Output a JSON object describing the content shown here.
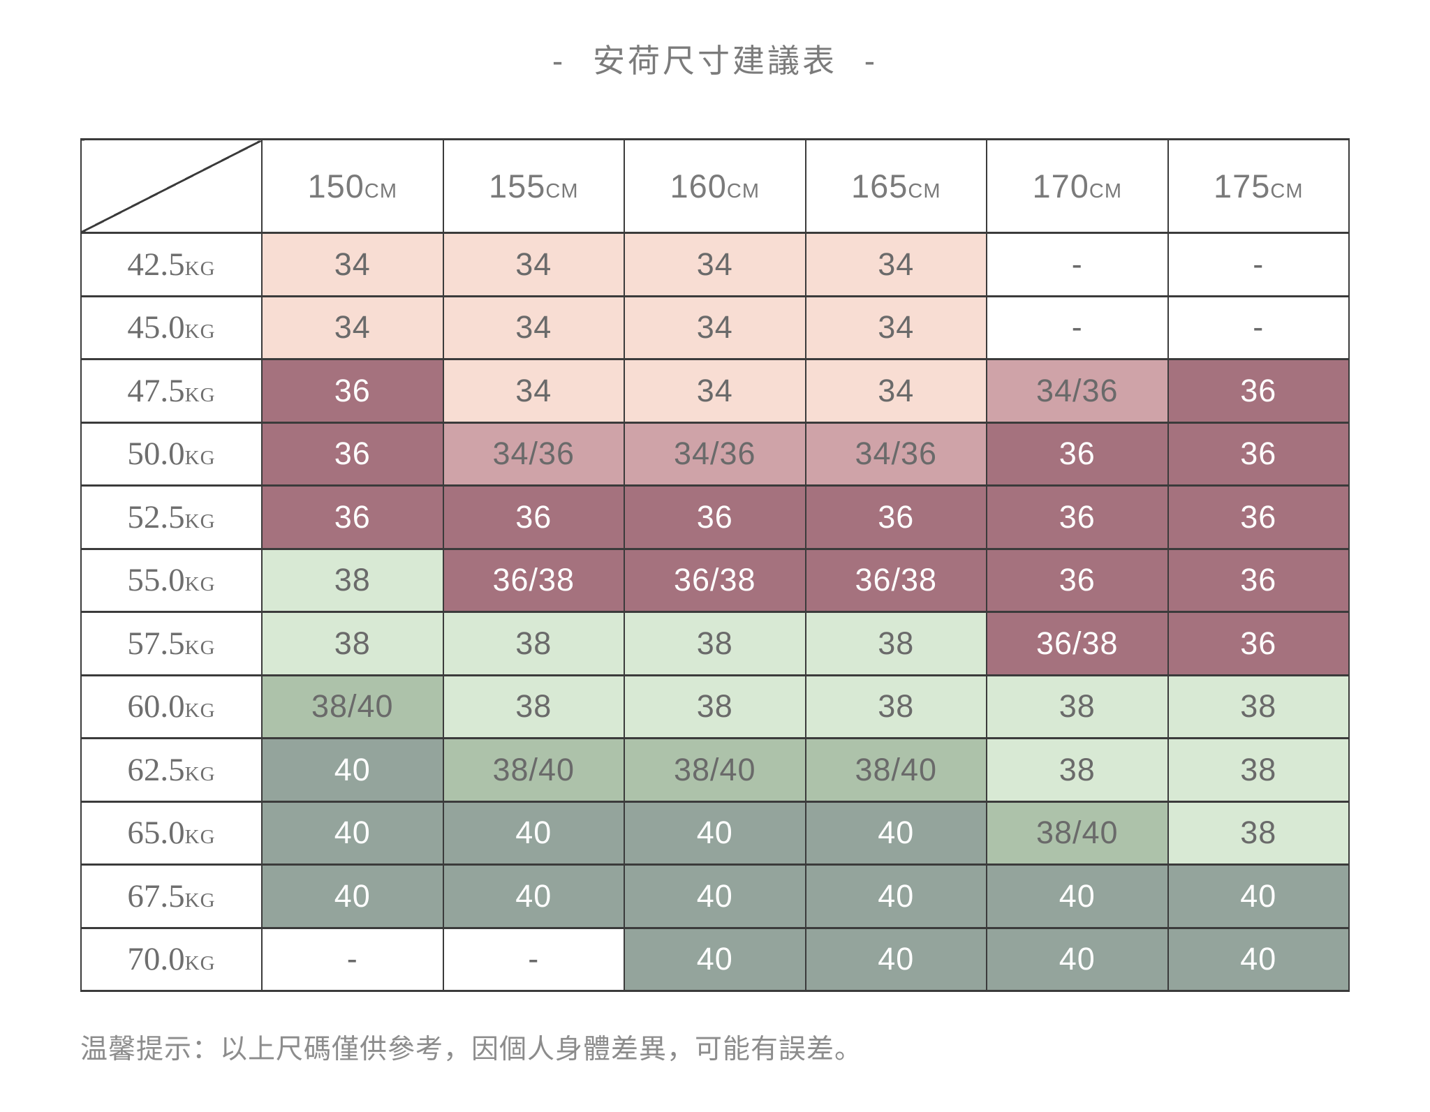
{
  "chart_data": {
    "type": "table",
    "title": "- 安荷尺寸建議表 -",
    "note": "温馨提示：以上尺碼僅供參考，因個人身體差異，可能有誤差。",
    "column_unit": "CM",
    "row_unit": "KG",
    "columns": [
      "150",
      "155",
      "160",
      "165",
      "170",
      "175"
    ],
    "rows": [
      "42.5",
      "45.0",
      "47.5",
      "50.0",
      "52.5",
      "55.0",
      "57.5",
      "60.0",
      "62.5",
      "65.0",
      "67.5",
      "70.0"
    ],
    "cells": [
      [
        {
          "v": "34",
          "bg": "lightPink",
          "fg": "dark"
        },
        {
          "v": "34",
          "bg": "lightPink",
          "fg": "dark"
        },
        {
          "v": "34",
          "bg": "lightPink",
          "fg": "dark"
        },
        {
          "v": "34",
          "bg": "lightPink",
          "fg": "dark"
        },
        {
          "v": "-",
          "bg": "white",
          "fg": "dark"
        },
        {
          "v": "-",
          "bg": "white",
          "fg": "dark"
        }
      ],
      [
        {
          "v": "34",
          "bg": "lightPink",
          "fg": "dark"
        },
        {
          "v": "34",
          "bg": "lightPink",
          "fg": "dark"
        },
        {
          "v": "34",
          "bg": "lightPink",
          "fg": "dark"
        },
        {
          "v": "34",
          "bg": "lightPink",
          "fg": "dark"
        },
        {
          "v": "-",
          "bg": "white",
          "fg": "dark"
        },
        {
          "v": "-",
          "bg": "white",
          "fg": "dark"
        }
      ],
      [
        {
          "v": "36",
          "bg": "darkPink",
          "fg": "light"
        },
        {
          "v": "34",
          "bg": "lightPink",
          "fg": "dark"
        },
        {
          "v": "34",
          "bg": "lightPink",
          "fg": "dark"
        },
        {
          "v": "34",
          "bg": "lightPink",
          "fg": "dark"
        },
        {
          "v": "34/36",
          "bg": "midPink",
          "fg": "dark"
        },
        {
          "v": "36",
          "bg": "darkPink",
          "fg": "light"
        }
      ],
      [
        {
          "v": "36",
          "bg": "darkPink",
          "fg": "light"
        },
        {
          "v": "34/36",
          "bg": "midPink",
          "fg": "dark"
        },
        {
          "v": "34/36",
          "bg": "midPink",
          "fg": "dark"
        },
        {
          "v": "34/36",
          "bg": "midPink",
          "fg": "dark"
        },
        {
          "v": "36",
          "bg": "darkPink",
          "fg": "light"
        },
        {
          "v": "36",
          "bg": "darkPink",
          "fg": "light"
        }
      ],
      [
        {
          "v": "36",
          "bg": "darkPink",
          "fg": "light"
        },
        {
          "v": "36",
          "bg": "darkPink",
          "fg": "light"
        },
        {
          "v": "36",
          "bg": "darkPink",
          "fg": "light"
        },
        {
          "v": "36",
          "bg": "darkPink",
          "fg": "light"
        },
        {
          "v": "36",
          "bg": "darkPink",
          "fg": "light"
        },
        {
          "v": "36",
          "bg": "darkPink",
          "fg": "light"
        }
      ],
      [
        {
          "v": "38",
          "bg": "lightGreen",
          "fg": "dark"
        },
        {
          "v": "36/38",
          "bg": "darkPink",
          "fg": "light"
        },
        {
          "v": "36/38",
          "bg": "darkPink",
          "fg": "light"
        },
        {
          "v": "36/38",
          "bg": "darkPink",
          "fg": "light"
        },
        {
          "v": "36",
          "bg": "darkPink",
          "fg": "light"
        },
        {
          "v": "36",
          "bg": "darkPink",
          "fg": "light"
        }
      ],
      [
        {
          "v": "38",
          "bg": "lightGreen",
          "fg": "dark"
        },
        {
          "v": "38",
          "bg": "lightGreen",
          "fg": "dark"
        },
        {
          "v": "38",
          "bg": "lightGreen",
          "fg": "dark"
        },
        {
          "v": "38",
          "bg": "lightGreen",
          "fg": "dark"
        },
        {
          "v": "36/38",
          "bg": "darkPink",
          "fg": "light"
        },
        {
          "v": "36",
          "bg": "darkPink",
          "fg": "light"
        }
      ],
      [
        {
          "v": "38/40",
          "bg": "midGreen",
          "fg": "dark"
        },
        {
          "v": "38",
          "bg": "lightGreen",
          "fg": "dark"
        },
        {
          "v": "38",
          "bg": "lightGreen",
          "fg": "dark"
        },
        {
          "v": "38",
          "bg": "lightGreen",
          "fg": "dark"
        },
        {
          "v": "38",
          "bg": "lightGreen",
          "fg": "dark"
        },
        {
          "v": "38",
          "bg": "lightGreen",
          "fg": "dark"
        }
      ],
      [
        {
          "v": "40",
          "bg": "darkGreen",
          "fg": "light"
        },
        {
          "v": "38/40",
          "bg": "midGreen",
          "fg": "dark"
        },
        {
          "v": "38/40",
          "bg": "midGreen",
          "fg": "dark"
        },
        {
          "v": "38/40",
          "bg": "midGreen",
          "fg": "dark"
        },
        {
          "v": "38",
          "bg": "lightGreen",
          "fg": "dark"
        },
        {
          "v": "38",
          "bg": "lightGreen",
          "fg": "dark"
        }
      ],
      [
        {
          "v": "40",
          "bg": "darkGreen",
          "fg": "light"
        },
        {
          "v": "40",
          "bg": "darkGreen",
          "fg": "light"
        },
        {
          "v": "40",
          "bg": "darkGreen",
          "fg": "light"
        },
        {
          "v": "40",
          "bg": "darkGreen",
          "fg": "light"
        },
        {
          "v": "38/40",
          "bg": "midGreen",
          "fg": "dark"
        },
        {
          "v": "38",
          "bg": "lightGreen",
          "fg": "dark"
        }
      ],
      [
        {
          "v": "40",
          "bg": "darkGreen",
          "fg": "light"
        },
        {
          "v": "40",
          "bg": "darkGreen",
          "fg": "light"
        },
        {
          "v": "40",
          "bg": "darkGreen",
          "fg": "light"
        },
        {
          "v": "40",
          "bg": "darkGreen",
          "fg": "light"
        },
        {
          "v": "40",
          "bg": "darkGreen",
          "fg": "light"
        },
        {
          "v": "40",
          "bg": "darkGreen",
          "fg": "light"
        }
      ],
      [
        {
          "v": "-",
          "bg": "white",
          "fg": "dark"
        },
        {
          "v": "-",
          "bg": "white",
          "fg": "dark"
        },
        {
          "v": "40",
          "bg": "darkGreen",
          "fg": "light"
        },
        {
          "v": "40",
          "bg": "darkGreen",
          "fg": "light"
        },
        {
          "v": "40",
          "bg": "darkGreen",
          "fg": "light"
        },
        {
          "v": "40",
          "bg": "darkGreen",
          "fg": "light"
        }
      ]
    ]
  },
  "colors": {
    "palette": {
      "lightPink": "#f8ddd3",
      "midPink": "#cfa3a8",
      "darkPink": "#a5727e",
      "lightGreen": "#d8e9d4",
      "midGreen": "#adc2aa",
      "darkGreen": "#94a49c",
      "white": "#ffffff"
    },
    "text": {
      "dark": "#6a6a6a",
      "light": "#ffffff"
    },
    "border": "#3b3b3b",
    "title_text": "#7b7b7b",
    "note_text": "#8c8c8c"
  }
}
